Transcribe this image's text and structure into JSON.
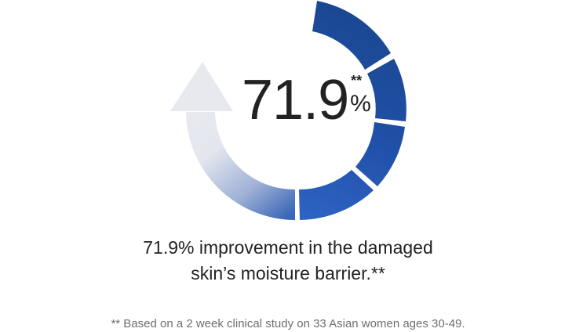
{
  "stat": {
    "number": "71.9",
    "superscript": "**",
    "unit": "%"
  },
  "headline": {
    "line1": "71.9% improvement in the damaged",
    "line2": "skin’s moisture barrier.**"
  },
  "footnote": "** Based on a 2 week clinical study on 33 Asian women ages 30-49.",
  "colors": {
    "arc_dark": "#1a4a9e",
    "arc_mid": "#2f63c4",
    "arrow_light": "#e6e7ee",
    "text": "#222222",
    "footnote_text": "#6f6f6f"
  },
  "icons": {
    "graphic": "circular-progress-arrow-icon"
  }
}
